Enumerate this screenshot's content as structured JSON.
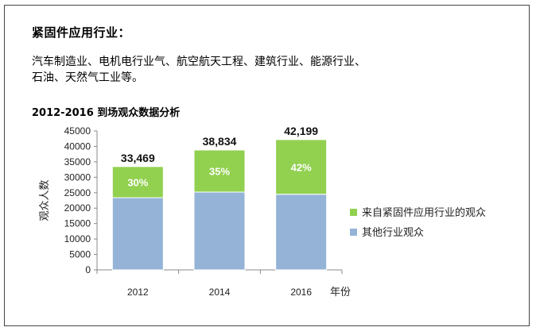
{
  "heading": "紧固件应用行业：",
  "industries_line1": "汽车制造业、电机电行业气、航空航天工程、建筑行业、能源行业、",
  "industries_line2": "石油、天然气工业等。",
  "chart_data": {
    "type": "bar",
    "stacked": true,
    "title": "2012-2016 到场观众数据分析",
    "xlabel": "年份",
    "ylabel": "观众人数",
    "categories": [
      "2012",
      "2014",
      "2016"
    ],
    "ylim": [
      0,
      45000
    ],
    "yticks": [
      0,
      5000,
      10000,
      15000,
      20000,
      25000,
      30000,
      35000,
      40000,
      45000
    ],
    "grid": false,
    "legend_position": "right",
    "totals": [
      33469,
      38834,
      42199
    ],
    "total_labels": [
      "33,469",
      "38,834",
      "42,199"
    ],
    "series": [
      {
        "name": "其他行业观众",
        "values": [
          23400,
          25200,
          24500
        ],
        "color": "#95b3d7"
      },
      {
        "name": "来自紧固件应用行业的观众",
        "values": [
          10069,
          13634,
          17699
        ],
        "color": "#92d050",
        "labels": [
          "30%",
          "35%",
          "42%"
        ]
      }
    ]
  }
}
